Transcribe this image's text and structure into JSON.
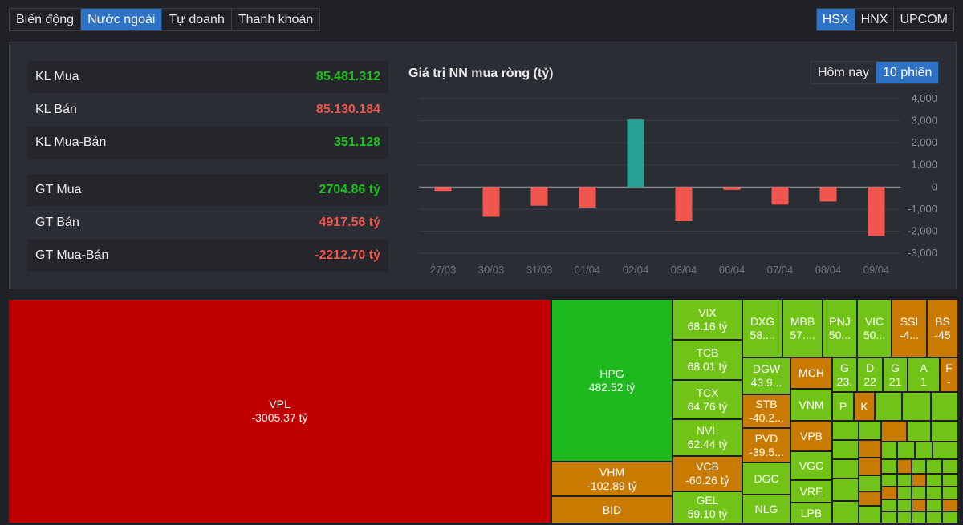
{
  "tabs": [
    "Biến động",
    "Nước ngoài",
    "Tự doanh",
    "Thanh khoản"
  ],
  "active_tab": 1,
  "exchanges": [
    "HSX",
    "HNX",
    "UPCOM"
  ],
  "active_exchange": 0,
  "stats": [
    {
      "label": "KL Mua",
      "value": "85.481.312",
      "color": "#1ec31e"
    },
    {
      "label": "KL Bán",
      "value": "85.130.184",
      "color": "#f0554e"
    },
    {
      "label": "KL Mua-Bán",
      "value": "351.128",
      "color": "#1ec31e"
    },
    {
      "label": "GT Mua",
      "value": "2704.86 tỷ",
      "color": "#1ec31e"
    },
    {
      "label": "GT Bán",
      "value": "4917.56 tỷ",
      "color": "#f0554e"
    },
    {
      "label": "GT Mua-Bán",
      "value": "-2212.70 tỷ",
      "color": "#f0554e"
    }
  ],
  "chart_title": "Giá trị NN mua ròng (tỷ)",
  "periods": [
    "Hôm nay",
    "10 phiên"
  ],
  "active_period": 1,
  "chart_data": {
    "type": "bar",
    "title": "Giá trị NN mua ròng (tỷ)",
    "categories": [
      "27/03",
      "30/03",
      "31/03",
      "01/04",
      "02/04",
      "03/04",
      "06/04",
      "07/04",
      "08/04",
      "09/04"
    ],
    "values": [
      -180,
      -1350,
      -850,
      -930,
      3050,
      -1550,
      -130,
      -800,
      -660,
      -2213
    ],
    "ylim": [
      -3000,
      4000
    ],
    "yticks": [
      "4,000",
      "3,000",
      "2,000",
      "1,000",
      "0",
      "-1,000",
      "-2,000",
      "-3,000"
    ],
    "ytick_values": [
      4000,
      3000,
      2000,
      1000,
      0,
      -1000,
      -2000,
      -3000
    ],
    "positive_color": "#2aa198",
    "negative_color": "#f0554e",
    "grid": true
  },
  "treemap": {
    "vpl": {
      "name": "VPL",
      "value": "-3005.37 tỷ"
    },
    "hpg": {
      "name": "HPG",
      "value": "482.52 tỷ"
    },
    "vhm": {
      "name": "VHM",
      "value": "-102.89 tỷ"
    },
    "bid": {
      "name": "BID"
    },
    "vix": {
      "name": "VIX",
      "value": "68.16 tỷ"
    },
    "tcb": {
      "name": "TCB",
      "value": "68.01 tỷ"
    },
    "tcx": {
      "name": "TCX",
      "value": "64.76 tỷ"
    },
    "nvl": {
      "name": "NVL",
      "value": "62.44 tỷ"
    },
    "vcb": {
      "name": "VCB",
      "value": "-60.26 tỷ"
    },
    "gel": {
      "name": "GEL",
      "value": "59.10 tỷ"
    },
    "dxg": {
      "name": "DXG",
      "value": "58...."
    },
    "mbb": {
      "name": "MBB",
      "value": "57...."
    },
    "pnj": {
      "name": "PNJ",
      "value": "50..."
    },
    "vic": {
      "name": "VIC",
      "value": "50..."
    },
    "ssi": {
      "name": "SSI",
      "value": "-4..."
    },
    "bs": {
      "name": "BS",
      "value": "-45"
    },
    "dgw": {
      "name": "DGW",
      "value": "43.9..."
    },
    "mch": {
      "name": "MCH"
    },
    "g1": {
      "name": "G",
      "value": "23."
    },
    "d": {
      "name": "D",
      "value": "22"
    },
    "g2": {
      "name": "G",
      "value": "21"
    },
    "a": {
      "name": "A",
      "value": "1"
    },
    "f": {
      "name": "F",
      "value": "-"
    },
    "stb": {
      "name": "STB",
      "value": "-40.2..."
    },
    "vnm": {
      "name": "VNM"
    },
    "p": {
      "name": "P"
    },
    "k": {
      "name": "K"
    },
    "pvd": {
      "name": "PVD",
      "value": "-39.5..."
    },
    "vpb": {
      "name": "VPB"
    },
    "dgc": {
      "name": "DGC"
    },
    "vgc": {
      "name": "VGC"
    },
    "vre": {
      "name": "VRE"
    },
    "nlg": {
      "name": "NLG"
    },
    "lpb": {
      "name": "LPB"
    }
  }
}
